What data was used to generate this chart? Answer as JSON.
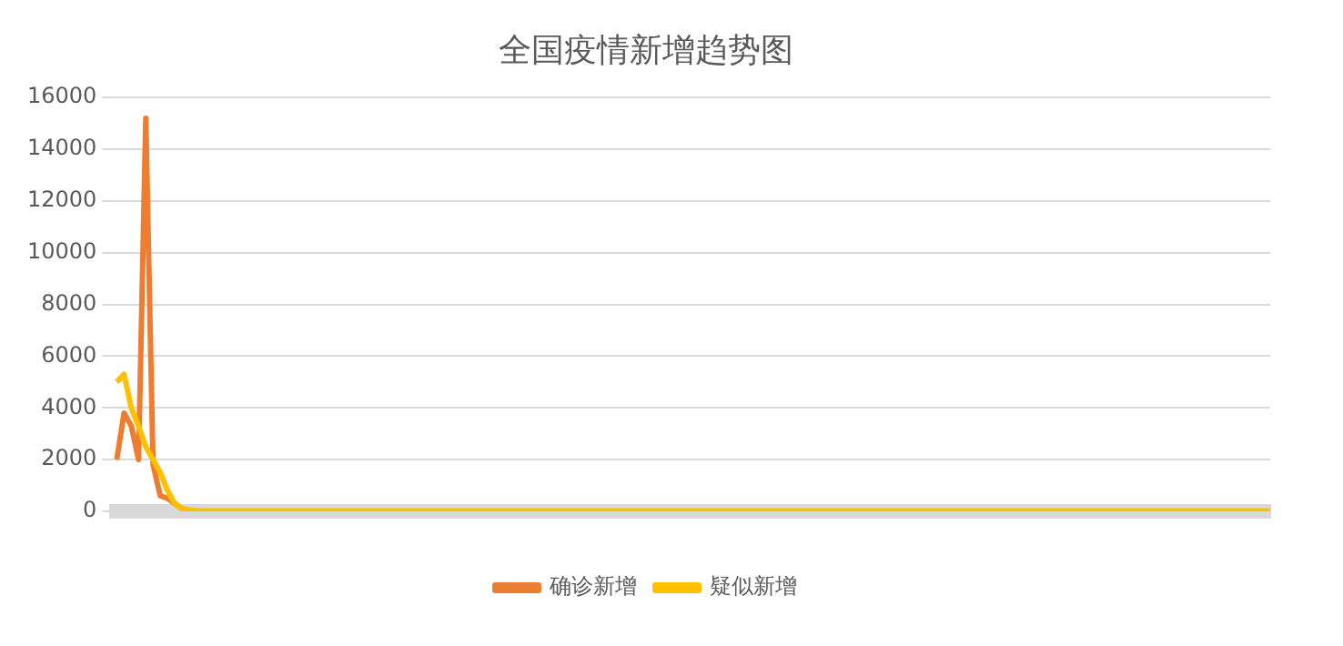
{
  "chart_data": {
    "type": "line",
    "title": "全国疫情新增趋势图",
    "categories": [
      null,
      null,
      null,
      null,
      null,
      null,
      null,
      null,
      null,
      null,
      null,
      null,
      null,
      null,
      null,
      null,
      null,
      null,
      null,
      null,
      null,
      null,
      null,
      null,
      null,
      null,
      null,
      null,
      null,
      null,
      null,
      null,
      null,
      null,
      null,
      null,
      null,
      null,
      null,
      null,
      null,
      null,
      null,
      null,
      null,
      null,
      null,
      null,
      null,
      null,
      null,
      null,
      null,
      null,
      null,
      null,
      null,
      null,
      null,
      null,
      null,
      null,
      null,
      null,
      null,
      null,
      null,
      null,
      null,
      null,
      null,
      null,
      null,
      null,
      null,
      null,
      null,
      null,
      null,
      null,
      null,
      null,
      null,
      null,
      null,
      null,
      null,
      null,
      null,
      null,
      null,
      null,
      null,
      null,
      null,
      null,
      null,
      null,
      null,
      null,
      null,
      null,
      null,
      null,
      null,
      null,
      null,
      null,
      null,
      null,
      null,
      null,
      null,
      null,
      null,
      null,
      null,
      null,
      null,
      null,
      null,
      null,
      null,
      null,
      null,
      null,
      null,
      null,
      null,
      null,
      null,
      null,
      null,
      null,
      null,
      null,
      null,
      null,
      null,
      null,
      null,
      null,
      null,
      null,
      null,
      null,
      null,
      null,
      null,
      null,
      null,
      null,
      null,
      null,
      null,
      null,
      null,
      null,
      null,
      null
    ],
    "series": [
      {
        "name": "确诊新增",
        "color": "#ed7d31",
        "values": [
          2000,
          3800,
          3300,
          2000,
          15200,
          1800,
          600,
          500,
          300,
          100,
          50,
          null,
          null,
          null,
          null,
          null,
          null,
          null,
          null,
          null,
          null,
          null,
          null,
          null,
          null,
          null,
          null,
          null,
          null,
          null,
          null,
          null,
          null,
          null,
          null,
          null,
          null,
          null,
          null,
          null,
          null,
          null,
          null,
          null,
          null,
          null,
          null,
          null,
          null,
          null,
          null,
          null,
          null,
          null,
          null,
          null,
          null,
          null,
          null,
          null,
          null,
          null,
          null,
          null,
          null,
          null,
          null,
          null,
          null,
          null,
          null,
          null,
          null,
          null,
          null,
          null,
          null,
          null,
          null,
          null,
          null,
          null,
          null,
          null,
          null,
          null,
          null,
          null,
          null,
          null,
          null,
          null,
          null,
          null,
          null,
          null,
          null,
          null,
          null,
          null,
          null,
          null,
          null,
          null,
          null,
          null,
          null,
          null,
          null,
          null,
          null,
          null,
          null,
          null,
          null,
          null,
          null,
          null,
          null,
          null,
          null,
          null,
          null,
          null,
          null,
          null,
          null,
          null,
          null,
          null,
          null,
          null,
          null,
          null,
          null,
          null,
          null,
          null,
          null,
          null,
          null,
          null,
          null,
          null,
          null,
          null,
          null,
          null,
          null,
          null,
          null,
          null,
          null,
          null,
          null,
          null,
          null,
          null,
          null,
          null
        ]
      },
      {
        "name": "疑似新增",
        "color": "#ffc000",
        "values": [
          5000,
          5300,
          4000,
          3300,
          2500,
          2000,
          1500,
          800,
          300,
          100,
          50,
          20,
          20,
          20,
          20,
          20,
          20,
          20,
          20,
          20,
          20,
          20,
          20,
          20,
          20,
          20,
          20,
          20,
          20,
          20,
          20,
          20,
          20,
          20,
          20,
          20,
          20,
          20,
          20,
          20,
          20,
          20,
          20,
          20,
          20,
          20,
          20,
          20,
          20,
          20,
          20,
          20,
          20,
          20,
          20,
          20,
          20,
          20,
          20,
          20,
          20,
          20,
          20,
          20,
          20,
          20,
          20,
          20,
          20,
          20,
          20,
          20,
          20,
          20,
          20,
          20,
          20,
          20,
          20,
          20,
          20,
          20,
          20,
          20,
          20,
          20,
          20,
          20,
          20,
          20,
          20,
          20,
          20,
          20,
          20,
          20,
          20,
          20,
          20,
          20,
          20,
          20,
          20,
          20,
          20,
          20,
          20,
          20,
          20,
          20,
          20,
          20,
          20,
          20,
          20,
          20,
          20,
          20,
          20,
          20,
          20,
          20,
          20,
          20,
          20,
          20,
          20,
          20,
          20,
          20,
          20,
          20,
          20,
          20,
          20,
          20,
          20,
          20,
          20,
          20,
          20,
          20,
          20,
          20,
          20,
          20,
          20,
          20,
          20,
          20,
          20,
          20,
          20,
          20,
          20,
          20,
          20,
          20,
          20,
          20
        ]
      }
    ],
    "ylim": [
      0,
      16000
    ],
    "yticks": [
      0,
      2000,
      4000,
      6000,
      8000,
      10000,
      12000,
      14000,
      16000
    ],
    "grid": "y",
    "legend": "bottom",
    "marker": "none",
    "line_style": "solid"
  }
}
